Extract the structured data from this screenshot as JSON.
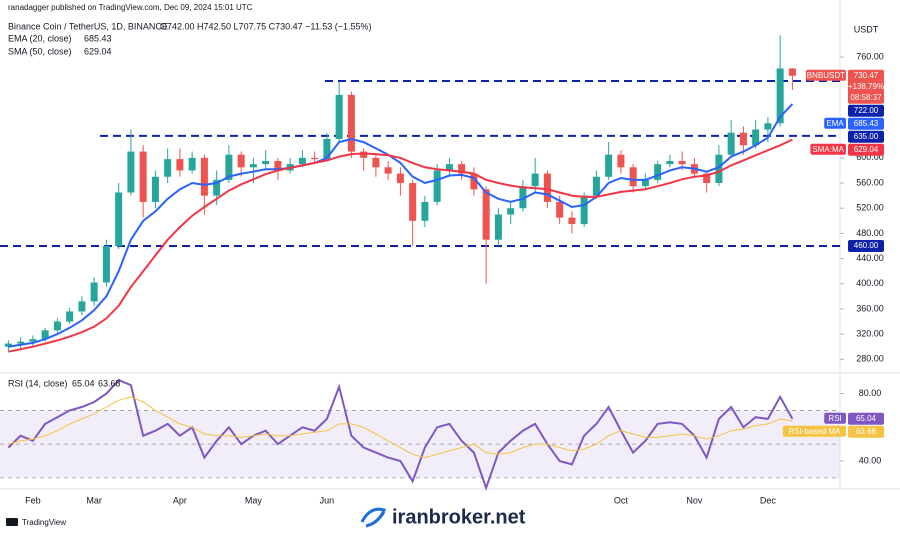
{
  "header": {
    "published": "ranadagger published on TradingView.com, Dec 09, 2024 15:01 UTC"
  },
  "chart_data": [
    {
      "type": "candlestick",
      "title": "Binance Coin / TetherUS, 1D, BINANCE",
      "ohlc_text": "O742.00 H742.50 L707.75 C730.47 −11.53 (−1.55%)",
      "unit": "USDT",
      "change_text": "+138.79%",
      "countdown": "08:58:37",
      "categories": [
        null,
        null,
        "Feb",
        null,
        null,
        null,
        null,
        "Mar",
        null,
        null,
        null,
        null,
        null,
        null,
        "Apr",
        null,
        null,
        null,
        null,
        null,
        "May",
        null,
        null,
        null,
        null,
        null,
        "Jun",
        null,
        null,
        null,
        null,
        null,
        null,
        null,
        null,
        null,
        null,
        null,
        null,
        null,
        null,
        null,
        null,
        null,
        null,
        null,
        null,
        null,
        null,
        null,
        "Oct",
        null,
        null,
        null,
        null,
        null,
        "Nov",
        null,
        null,
        null,
        null,
        null,
        "Dec",
        null,
        null
      ],
      "candles": {
        "name": "BNBUSDT",
        "up_color": "#26a69a",
        "down_color": "#ef5350",
        "open": [
          300,
          305,
          308,
          312,
          326,
          340,
          356,
          372,
          402,
          460,
          545,
          610,
          530,
          570,
          598,
          580,
          600,
          540,
          565,
          605,
          585,
          590,
          595,
          580,
          590,
          600,
          598,
          630,
          700,
          610,
          600,
          585,
          575,
          560,
          500,
          530,
          580,
          590,
          575,
          550,
          470,
          510,
          520,
          555,
          575,
          530,
          505,
          495,
          540,
          570,
          605,
          585,
          555,
          565,
          590,
          595,
          590,
          575,
          560,
          605,
          640,
          620,
          645,
          655,
          742.0
        ],
        "high": [
          310,
          315,
          318,
          330,
          345,
          362,
          380,
          410,
          470,
          560,
          645,
          620,
          580,
          615,
          615,
          610,
          605,
          580,
          620,
          610,
          600,
          612,
          600,
          600,
          612,
          610,
          640,
          720,
          705,
          615,
          605,
          595,
          585,
          565,
          540,
          590,
          600,
          595,
          585,
          555,
          520,
          530,
          565,
          600,
          580,
          540,
          515,
          545,
          580,
          625,
          612,
          590,
          575,
          595,
          605,
          610,
          600,
          580,
          620,
          660,
          650,
          660,
          665,
          795,
          742.5
        ],
        "low": [
          292,
          298,
          300,
          308,
          322,
          336,
          350,
          365,
          395,
          455,
          540,
          505,
          520,
          560,
          570,
          575,
          510,
          525,
          560,
          570,
          560,
          580,
          565,
          575,
          585,
          590,
          595,
          625,
          600,
          580,
          570,
          565,
          540,
          460,
          490,
          525,
          570,
          565,
          540,
          400,
          460,
          495,
          515,
          545,
          520,
          495,
          480,
          490,
          535,
          565,
          575,
          545,
          550,
          560,
          585,
          580,
          570,
          545,
          555,
          600,
          605,
          615,
          625,
          650,
          707.75
        ],
        "close": [
          305,
          308,
          312,
          326,
          340,
          356,
          372,
          402,
          460,
          545,
          610,
          530,
          570,
          598,
          580,
          600,
          540,
          565,
          605,
          585,
          590,
          595,
          580,
          590,
          600,
          598,
          630,
          700,
          610,
          600,
          585,
          575,
          560,
          500,
          530,
          580,
          590,
          575,
          550,
          470,
          510,
          520,
          555,
          575,
          530,
          505,
          495,
          540,
          570,
          605,
          585,
          555,
          565,
          590,
          595,
          590,
          575,
          560,
          605,
          640,
          620,
          645,
          655,
          742,
          730.47
        ]
      },
      "lines": [
        {
          "name": "EMA (20, close)",
          "short": "EMA",
          "color": "#2962ff",
          "values": [
            300,
            303,
            306,
            312,
            320,
            330,
            342,
            358,
            380,
            420,
            470,
            500,
            515,
            535,
            550,
            560,
            557,
            560,
            570,
            575,
            578,
            582,
            582,
            584,
            588,
            592,
            600,
            625,
            630,
            625,
            615,
            605,
            592,
            570,
            560,
            565,
            572,
            573,
            568,
            545,
            535,
            530,
            535,
            545,
            542,
            532,
            522,
            525,
            538,
            560,
            568,
            565,
            565,
            572,
            580,
            585,
            583,
            578,
            585,
            602,
            610,
            620,
            632,
            665,
            685.43
          ]
        },
        {
          "name": "SMA (50, close)",
          "short": "SMA:MA",
          "color": "#f23645",
          "values": [
            292,
            296,
            300,
            305,
            310,
            316,
            323,
            332,
            345,
            365,
            395,
            420,
            445,
            470,
            490,
            508,
            522,
            535,
            548,
            558,
            566,
            574,
            580,
            584,
            588,
            592,
            596,
            602,
            606,
            607,
            606,
            604,
            600,
            592,
            585,
            582,
            580,
            578,
            575,
            565,
            560,
            556,
            553,
            552,
            550,
            545,
            540,
            538,
            538,
            542,
            546,
            548,
            550,
            555,
            560,
            566,
            570,
            572,
            578,
            588,
            596,
            604,
            612,
            620,
            629.04
          ]
        }
      ],
      "levels": [
        {
          "value": 722,
          "label": "722.00"
        },
        {
          "value": 635,
          "label": "635.00"
        },
        {
          "value": 460,
          "label": "460.00"
        }
      ],
      "level_color": "#0d22a8",
      "ylim": [
        263,
        819
      ],
      "yticks": [
        {
          "value": 760,
          "label": "760.00"
        },
        {
          "value": 600,
          "label": "600.00"
        },
        {
          "value": 560,
          "label": "560.00"
        },
        {
          "value": 520,
          "label": "520.00"
        },
        {
          "value": 480,
          "label": "480.00"
        },
        {
          "value": 440,
          "label": "440.00"
        },
        {
          "value": 400,
          "label": "400.00"
        },
        {
          "value": 360,
          "label": "360.00"
        },
        {
          "value": 320,
          "label": "320.00"
        },
        {
          "value": 280,
          "label": "280.00"
        }
      ],
      "grid": false
    },
    {
      "type": "line",
      "series": [
        {
          "name": "RSI (14, close)",
          "short": "RSI",
          "color": "#7e57c2",
          "values": [
            48,
            55,
            52,
            62,
            66,
            70,
            72,
            75,
            80,
            88,
            85,
            55,
            58,
            62,
            55,
            60,
            42,
            52,
            60,
            50,
            55,
            58,
            50,
            55,
            60,
            58,
            65,
            84,
            55,
            48,
            45,
            42,
            40,
            28,
            48,
            60,
            62,
            52,
            45,
            24,
            45,
            52,
            58,
            62,
            50,
            40,
            38,
            55,
            62,
            72,
            58,
            45,
            52,
            62,
            63,
            62,
            55,
            42,
            65,
            72,
            60,
            66,
            65,
            78,
            65.04
          ]
        },
        {
          "name": "RSI-based MA",
          "short": "RSI-based MA",
          "color": "#f5c242",
          "values": [
            50,
            52,
            53,
            55,
            58,
            62,
            65,
            68,
            72,
            76,
            78,
            75,
            70,
            66,
            62,
            60,
            56,
            55,
            55,
            54,
            55,
            56,
            55,
            55,
            56,
            57,
            58,
            62,
            62,
            60,
            56,
            52,
            48,
            44,
            42,
            44,
            46,
            48,
            50,
            45,
            44,
            45,
            48,
            50,
            50,
            48,
            46,
            47,
            50,
            55,
            58,
            56,
            54,
            54,
            55,
            56,
            55,
            53,
            55,
            58,
            59,
            61,
            62,
            65,
            63.68
          ]
        }
      ],
      "levels": [
        70,
        50,
        30
      ],
      "ylim": [
        24,
        91
      ],
      "yticks": [
        {
          "value": 80,
          "label": "80.00"
        },
        {
          "value": 40,
          "label": "40.00"
        }
      ],
      "grid": false
    }
  ],
  "footer": {
    "brand": "TradingView",
    "watermark": "iranbroker.net"
  }
}
